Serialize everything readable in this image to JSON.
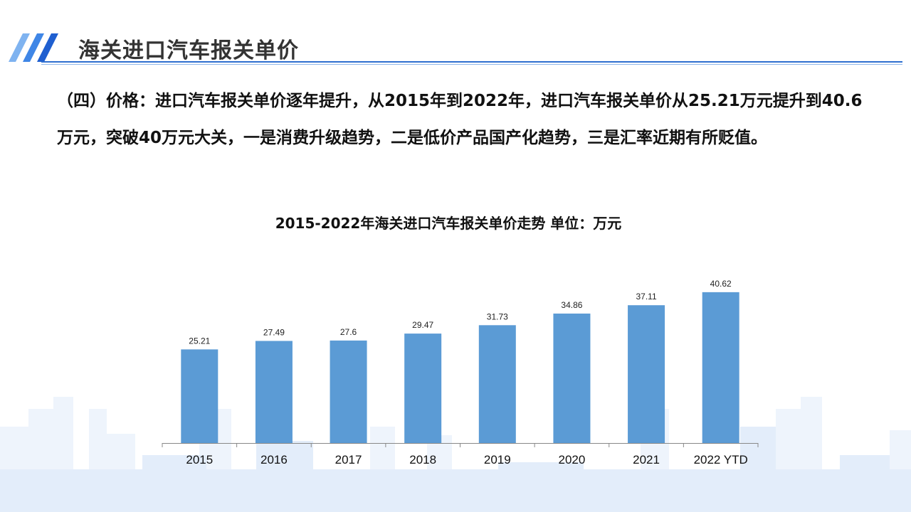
{
  "header": {
    "title": "海关进口汽车报关单价"
  },
  "body_text": "（四）价格：进口汽车报关单价逐年提升，从2015年到2022年，进口汽车报关单价从25.21万元提升到40.6万元，突破40万元大关，一是消费升级趋势，二是低价产品国产化趋势，三是汇率近期有所贬值。",
  "colors": {
    "bar": "#5b9bd5",
    "accent": "#2f6fcf",
    "skyline": "#e8f0fb"
  },
  "chart_data": {
    "type": "bar",
    "title": "2015-2022年海关进口汽车报关单价走势 单位：万元",
    "categories": [
      "2015",
      "2016",
      "2017",
      "2018",
      "2019",
      "2020",
      "2021",
      "2022 YTD"
    ],
    "values": [
      25.21,
      27.49,
      27.6,
      29.47,
      31.73,
      34.86,
      37.11,
      40.62
    ],
    "value_labels": [
      "25.21",
      "27.49",
      "27.6",
      "29.47",
      "31.73",
      "34.86",
      "37.11",
      "40.62"
    ],
    "ylim": [
      0,
      45
    ],
    "grid": false,
    "xlabel": "",
    "ylabel": ""
  }
}
